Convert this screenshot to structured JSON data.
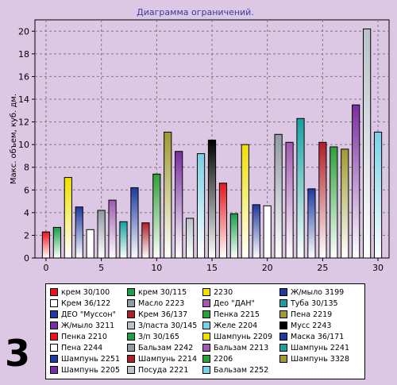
{
  "figure_label": "3",
  "chart_data": {
    "type": "bar",
    "title": "Диаграмма ограничений.",
    "ylabel": "Макс. объем, куб. дм.",
    "xlabel": "",
    "xlim": [
      -1,
      31
    ],
    "ylim": [
      0,
      21
    ],
    "x_ticks": [
      0,
      5,
      10,
      15,
      20,
      25,
      30
    ],
    "y_ticks": [
      0,
      2,
      4,
      6,
      8,
      10,
      12,
      14,
      16,
      18,
      20
    ],
    "grid": true,
    "legend": "bottom",
    "bars": [
      {
        "x": 0,
        "value": 2.3,
        "name": "крем 30/100",
        "color": "#e8141e"
      },
      {
        "x": 1,
        "value": 2.7,
        "name": "крем 30/115",
        "color": "#16a04a"
      },
      {
        "x": 2,
        "value": 7.1,
        "name": "2230",
        "color": "#f0e000"
      },
      {
        "x": 3,
        "value": 4.5,
        "name": "Ж/мыло 3199",
        "color": "#1e3aa0"
      },
      {
        "x": 4,
        "value": 2.5,
        "name": "Крем 36/122",
        "color": "#ffffff"
      },
      {
        "x": 5,
        "value": 4.2,
        "name": "Масло 2223",
        "color": "#909aa2"
      },
      {
        "x": 6,
        "value": 5.1,
        "name": "Део \"ДАН\"",
        "color": "#a05ab0"
      },
      {
        "x": 7,
        "value": 3.2,
        "name": "Туба 30/135",
        "color": "#16a0a0"
      },
      {
        "x": 8,
        "value": 6.2,
        "name": "ДЕО \"Муссон\"",
        "color": "#1e3aa0"
      },
      {
        "x": 9,
        "value": 3.1,
        "name": "Крем 36/137",
        "color": "#b01e28"
      },
      {
        "x": 10,
        "value": 7.4,
        "name": "Пенка 2215",
        "color": "#2ea03a"
      },
      {
        "x": 11,
        "value": 11.1,
        "name": "Пена 2219",
        "color": "#a09a30"
      },
      {
        "x": 12,
        "value": 9.4,
        "name": "Ж/мыло 3211",
        "color": "#7a2ea0"
      },
      {
        "x": 13,
        "value": 3.5,
        "name": "З/паста 30/145",
        "color": "#b8c2c8"
      },
      {
        "x": 14,
        "value": 9.2,
        "name": "Желе 2204",
        "color": "#78d0e6"
      },
      {
        "x": 15,
        "value": 10.4,
        "name": "Мусс 2243",
        "color": "#000000"
      },
      {
        "x": 16,
        "value": 6.6,
        "name": "Пенка 2210",
        "color": "#e8141e"
      },
      {
        "x": 17,
        "value": 3.9,
        "name": "З/п 30/165",
        "color": "#16a04a"
      },
      {
        "x": 18,
        "value": 10.0,
        "name": "Шампунь 2209",
        "color": "#f0e000"
      },
      {
        "x": 19,
        "value": 4.7,
        "name": "Маска 36/171",
        "color": "#1e3aa0"
      },
      {
        "x": 20,
        "value": 4.6,
        "name": "Пена 2244",
        "color": "#ffffff"
      },
      {
        "x": 21,
        "value": 10.9,
        "name": "Бальзам 2242",
        "color": "#909aa2"
      },
      {
        "x": 22,
        "value": 10.2,
        "name": "Бальзам 2213",
        "color": "#a05ab0"
      },
      {
        "x": 23,
        "value": 12.3,
        "name": "Шампунь 2241",
        "color": "#16a0a0"
      },
      {
        "x": 24,
        "value": 6.1,
        "name": "Шампунь 2251",
        "color": "#1e3aa0"
      },
      {
        "x": 25,
        "value": 10.2,
        "name": "Шампунь 2214",
        "color": "#b01e28"
      },
      {
        "x": 26,
        "value": 9.8,
        "name": "2206",
        "color": "#2ea03a"
      },
      {
        "x": 27,
        "value": 9.6,
        "name": "Шампунь 3328",
        "color": "#a09a30"
      },
      {
        "x": 28,
        "value": 13.5,
        "name": "Шампунь 2205",
        "color": "#7a2ea0"
      },
      {
        "x": 29,
        "value": 20.2,
        "name": "Посуда 2221",
        "color": "#b8c2c8"
      },
      {
        "x": 30,
        "value": 11.1,
        "name": "Бальзам 2252",
        "color": "#78d0e6"
      }
    ]
  }
}
